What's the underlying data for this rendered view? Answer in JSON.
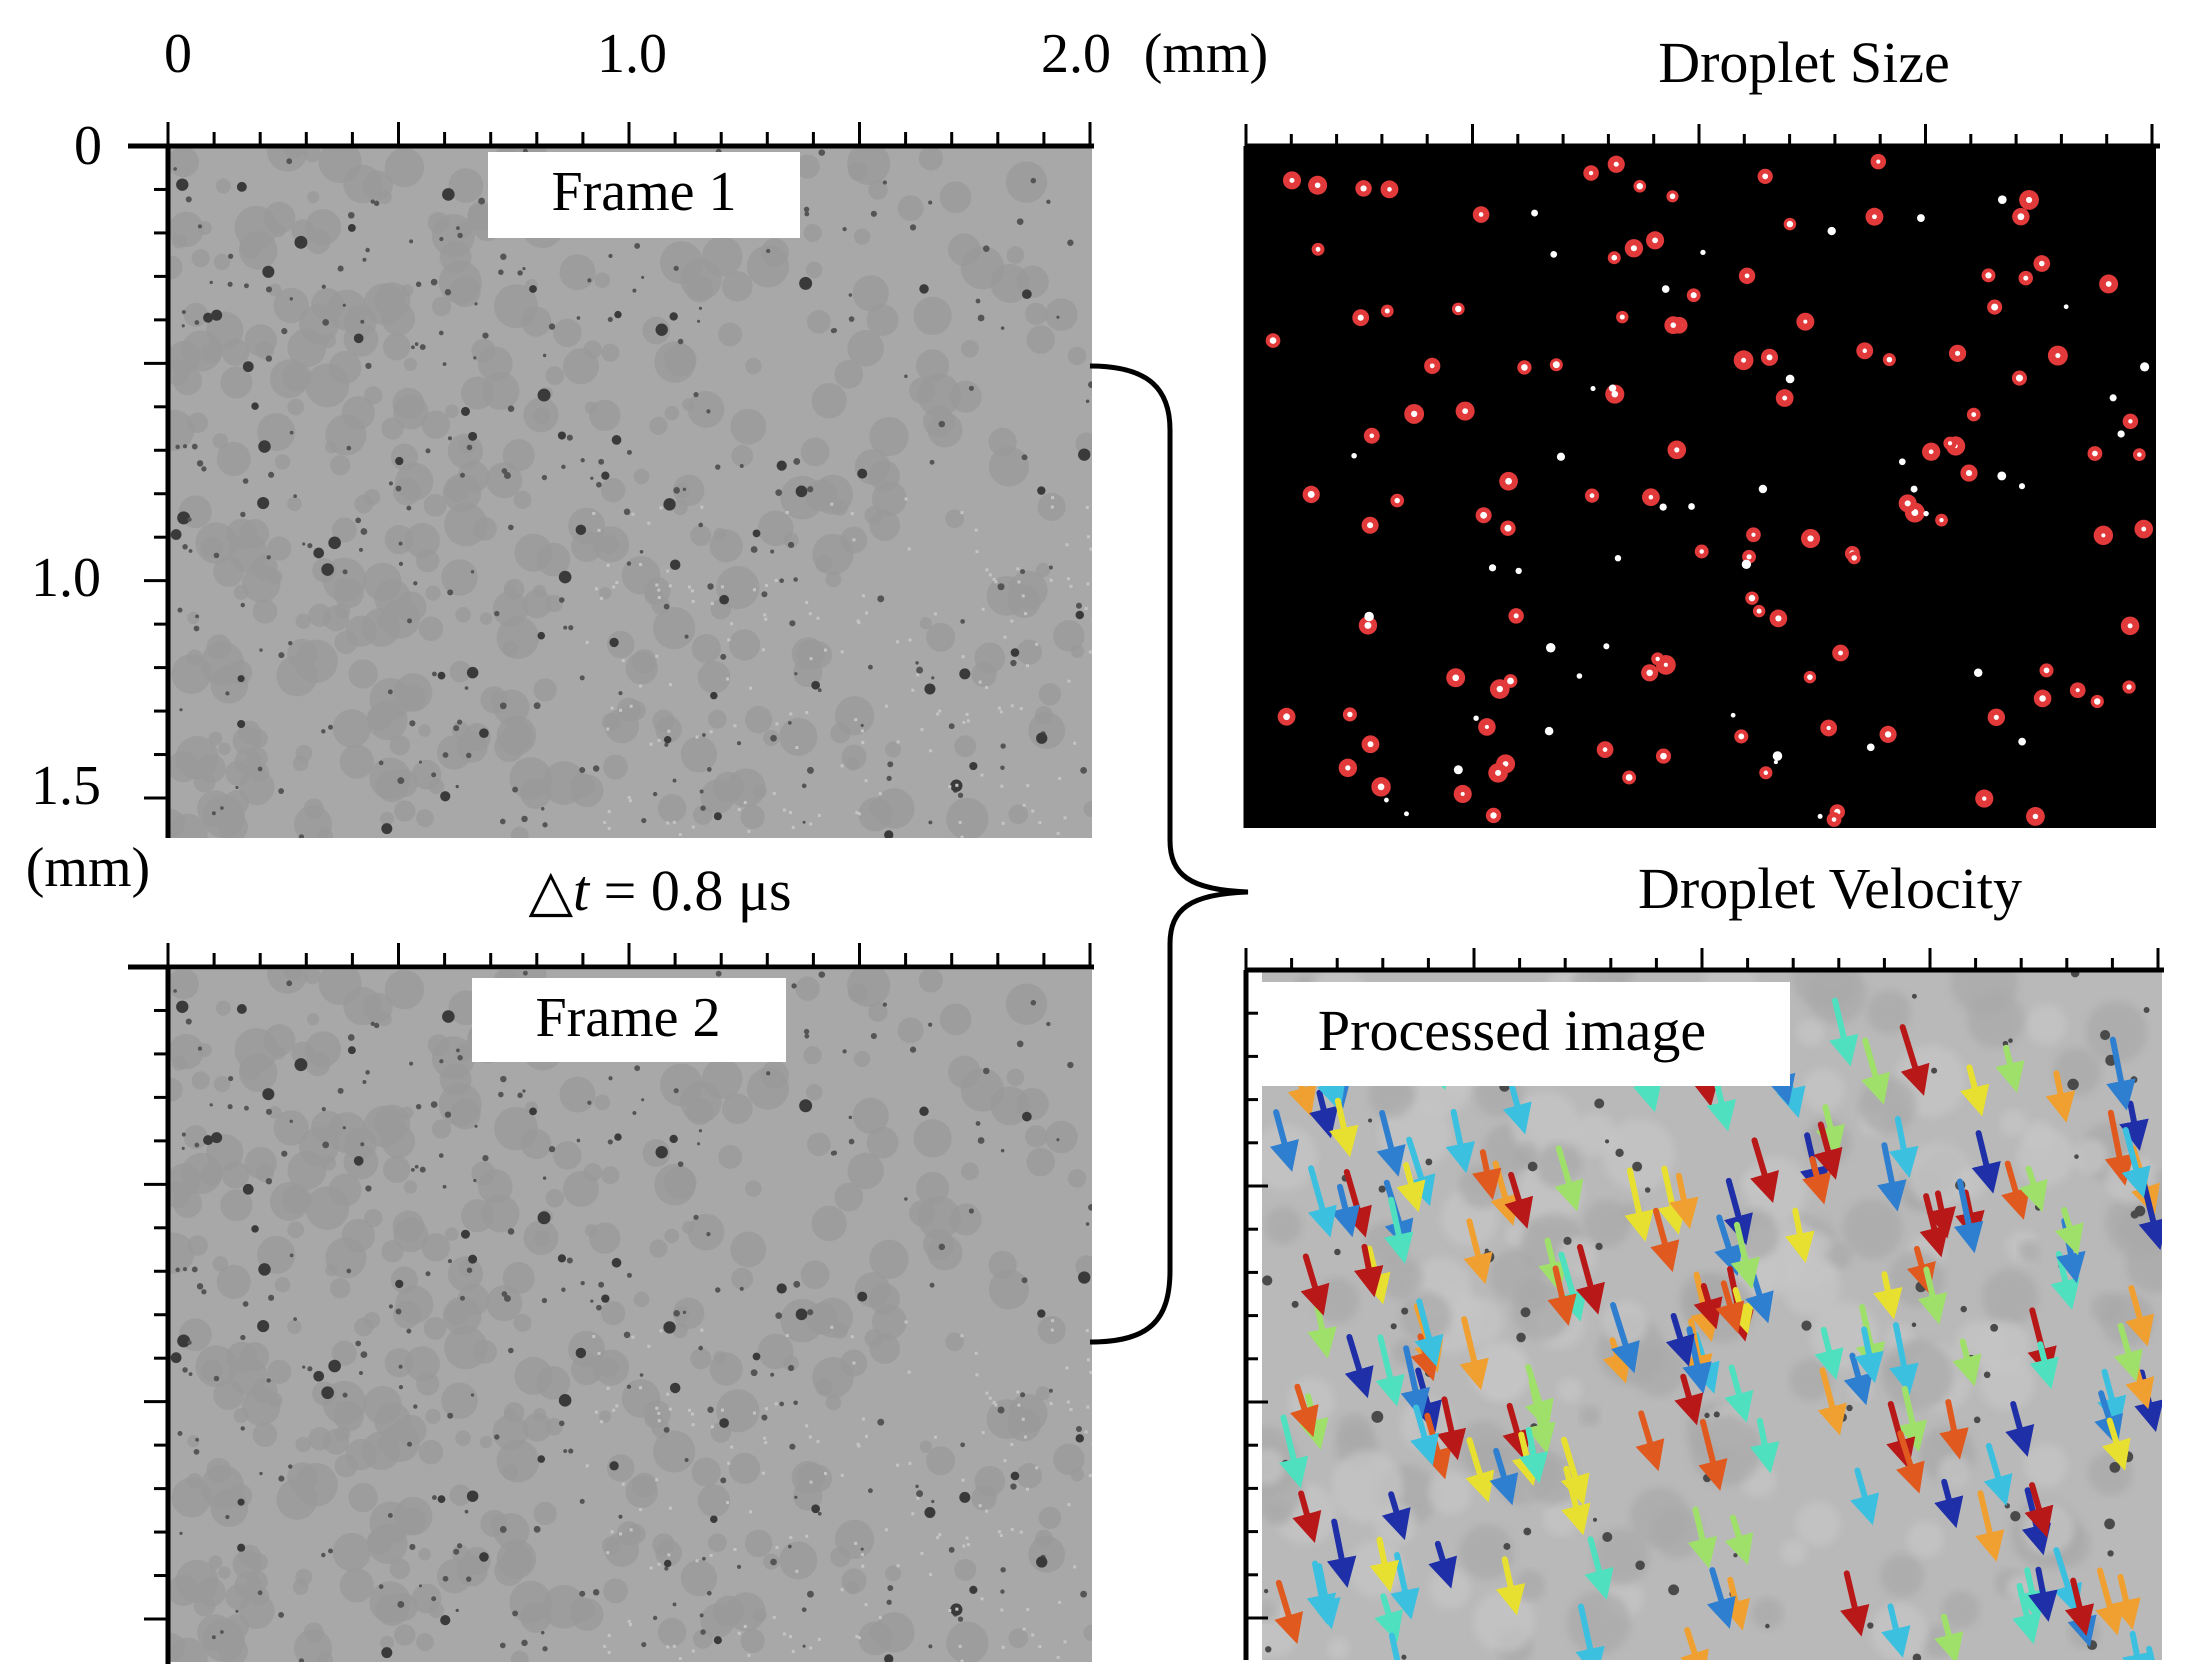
{
  "frame1": {
    "label": "Frame 1",
    "x_ticks": [
      {
        "value": 0,
        "label": "0"
      },
      {
        "value": 1.0,
        "label": "1.0"
      },
      {
        "value": 2.0,
        "label": "2.0"
      }
    ],
    "x_unit": "(mm)",
    "y_ticks": [
      {
        "value": 0,
        "label": "0"
      },
      {
        "value": 1.0,
        "label": "1.0"
      },
      {
        "value": 1.5,
        "label": "1.5"
      }
    ],
    "y_unit": "(mm)"
  },
  "time_step": {
    "symbol": "△",
    "variable": "t",
    "value": " = 0.8 μs"
  },
  "frame2": {
    "label": "Frame 2"
  },
  "droplet_size": {
    "title": "Droplet Size"
  },
  "droplet_velocity": {
    "title": "Droplet Velocity",
    "inset_label": "Processed image"
  },
  "colors": {
    "frame_background": "#a8a8a8",
    "size_background": "#000000",
    "detected_droplet": "#e23a3a",
    "droplet_core": "#ffffff",
    "velocity_background": "#b9b9b9"
  }
}
